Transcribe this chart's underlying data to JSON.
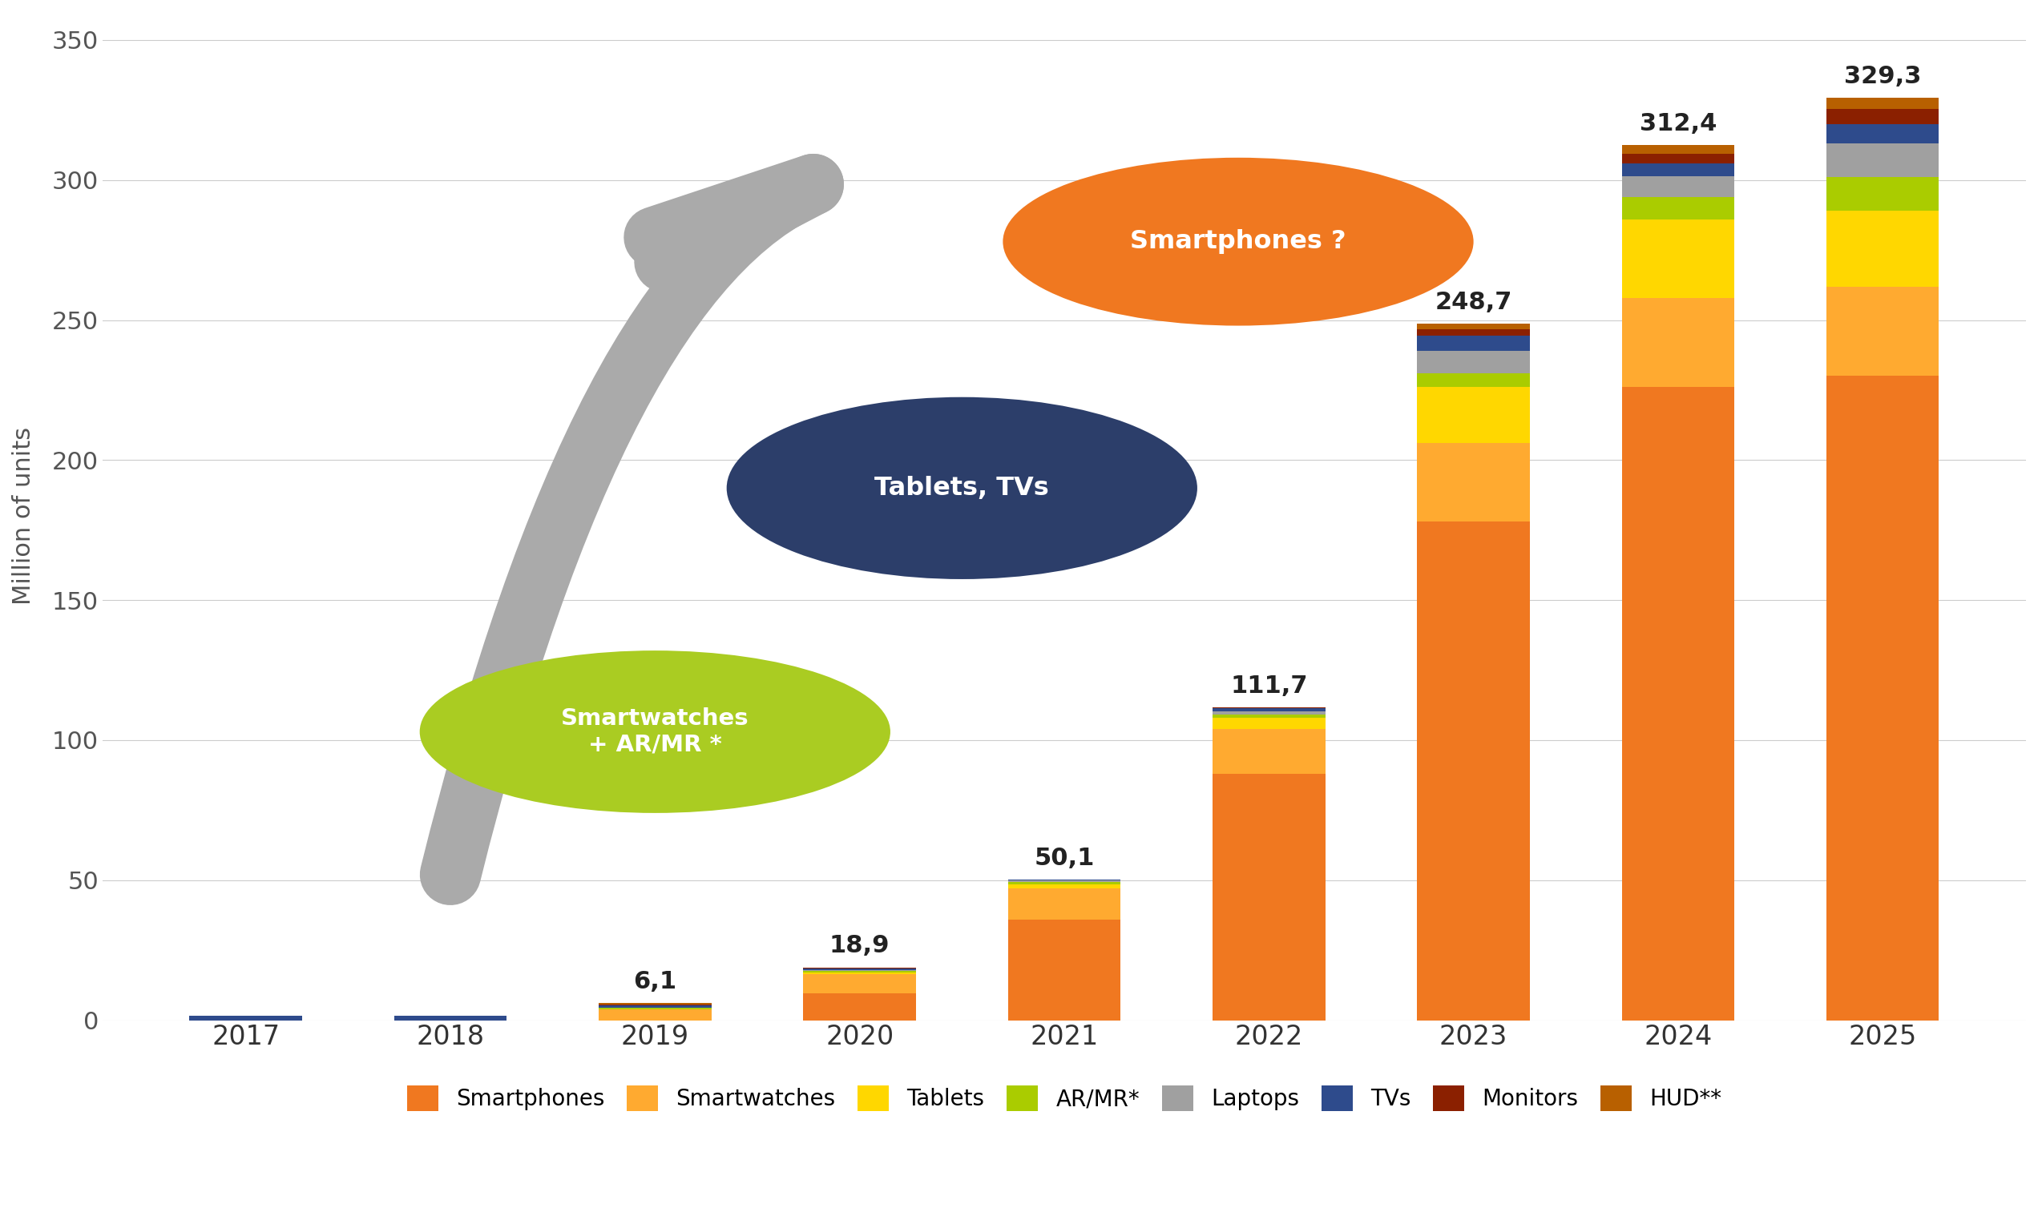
{
  "years": [
    "2017",
    "2018",
    "2019",
    "2020",
    "2021",
    "2022",
    "2023",
    "2024",
    "2025"
  ],
  "totals": [
    null,
    null,
    6.1,
    18.9,
    50.1,
    111.7,
    248.7,
    312.4,
    329.3
  ],
  "series": {
    "Smartphones": [
      0,
      0,
      0,
      9.5,
      36.0,
      88.0,
      178.0,
      226.0,
      230.0
    ],
    "Smartwatches": [
      0,
      0,
      3.8,
      7.0,
      11.0,
      16.0,
      28.0,
      32.0,
      32.0
    ],
    "Tablets": [
      0,
      0,
      0,
      0.5,
      1.5,
      4.0,
      20.0,
      28.0,
      27.0
    ],
    "AR/MR*": [
      0,
      0,
      0.8,
      0.5,
      0.8,
      1.2,
      5.0,
      8.0,
      12.0
    ],
    "Laptops": [
      0,
      0,
      0,
      0.5,
      0.5,
      1.2,
      8.0,
      7.5,
      12.0
    ],
    "TVs": [
      1.5,
      1.5,
      0.8,
      0.5,
      0.3,
      1.0,
      5.5,
      4.5,
      7.0
    ],
    "Monitors": [
      0,
      0,
      0.2,
      0.4,
      0.0,
      0.3,
      2.2,
      3.4,
      5.5
    ],
    "HUD**": [
      0,
      0,
      0.5,
      0.0,
      0.0,
      0.0,
      2.0,
      3.0,
      3.8
    ]
  },
  "colors": {
    "Smartphones": "#F07820",
    "Smartwatches": "#FFAA30",
    "Tablets": "#FFD700",
    "AR/MR*": "#AACC00",
    "Laptops": "#A0A0A0",
    "TVs": "#2E4B8C",
    "Monitors": "#8B2000",
    "HUD**": "#B86000"
  },
  "ylabel": "Million of units",
  "ylim": [
    0,
    360
  ],
  "yticks": [
    0,
    50,
    100,
    150,
    200,
    250,
    300,
    350
  ],
  "bg_color": "#FFFFFF",
  "grid_color": "#CCCCCC",
  "arrow_color": "#AAAAAA",
  "ellipse1_color": "#AACC22",
  "ellipse2_color": "#2C3E6A",
  "ellipse3_color": "#F07820",
  "label1": "Smartwatches\n+ AR/MR *",
  "label2": "Tablets, TVs",
  "label3": "Smartphones ?"
}
